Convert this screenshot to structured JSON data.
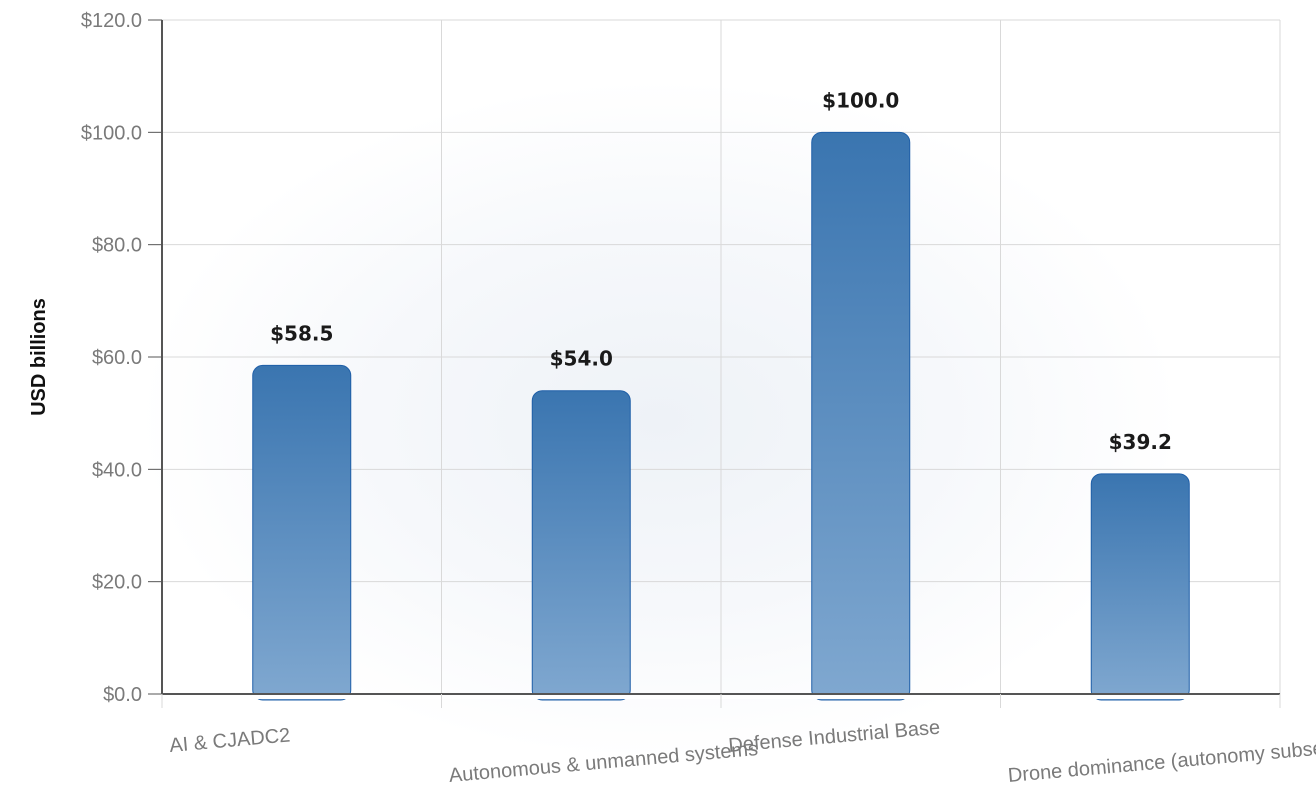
{
  "chart_data": {
    "type": "bar",
    "title": "",
    "xlabel": "",
    "ylabel": "USD billions",
    "categories": [
      "AI & CJADC2",
      "Autonomous & unmanned systems",
      "Defense Industrial Base",
      "Drone dominance (autonomy subset)"
    ],
    "values": [
      58.5,
      54.0,
      100.0,
      39.2
    ],
    "value_labels": [
      "$58.5",
      "$54.0",
      "$100.0",
      "$39.2"
    ],
    "ylim": [
      0,
      120
    ],
    "yticks": [
      0,
      20,
      40,
      60,
      80,
      100,
      120
    ],
    "ytick_labels": [
      "$0.0",
      "$20.0",
      "$40.0",
      "$60.0",
      "$80.0",
      "$100.0",
      "$120.0"
    ],
    "grid": true,
    "legend": "none",
    "colors": {
      "bar_top": "#3a75b0",
      "bar_bottom": "#80a8d0",
      "bar_stroke": "#1f5fa8",
      "grid": "#d9d9d9",
      "axis": "#555555"
    }
  }
}
